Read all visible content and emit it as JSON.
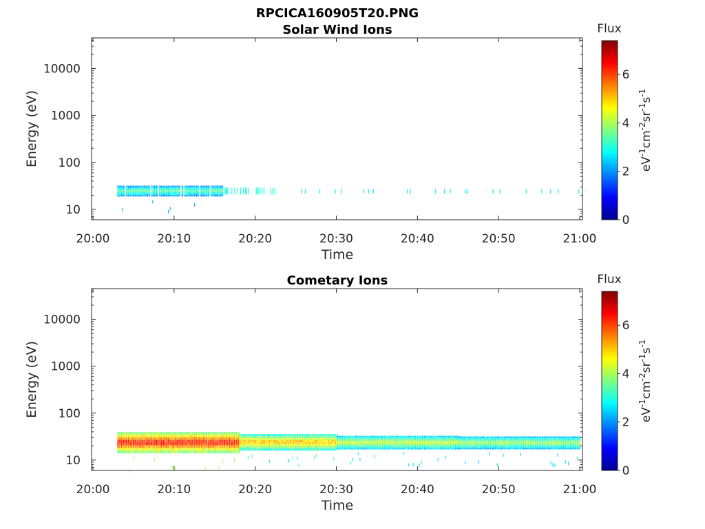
{
  "figure": {
    "title": "RPCICA160905T20.PNG"
  },
  "colors": {
    "axis": "#262626",
    "colormap": [
      "#00008f",
      "#0000ff",
      "#0080ff",
      "#00ffff",
      "#80ff80",
      "#ffff00",
      "#ff8000",
      "#ff0000",
      "#800000"
    ]
  },
  "chart_data": [
    {
      "type": "heatmap",
      "title": "Solar Wind Ions",
      "xlabel": "Time",
      "ylabel": "Energy (eV)",
      "x_ticks": [
        "20:00",
        "20:10",
        "20:20",
        "20:30",
        "20:40",
        "20:50",
        "21:00"
      ],
      "x_range": [
        "20:00",
        "21:00"
      ],
      "y_scale": "log",
      "y_ticks": [
        "10",
        "100",
        "1000",
        "10000"
      ],
      "y_range": [
        6,
        45000
      ],
      "colorbar": {
        "label": "Flux",
        "unit": "eV-1cm-2sr-1s-1",
        "ticks": [
          "0",
          "2",
          "4",
          "6"
        ],
        "range": [
          0,
          7.4
        ]
      },
      "bands": [
        {
          "t_start": "20:03",
          "t_end": "20:16",
          "e_low": 19,
          "e_high": 32,
          "flux": 3.4,
          "density": 0.9
        },
        {
          "t_start": "20:16",
          "t_end": "20:23",
          "e_low": 21,
          "e_high": 29,
          "flux": 3.0,
          "density": 0.35
        },
        {
          "t_start": "20:23",
          "t_end": "21:00",
          "e_low": 22,
          "e_high": 27,
          "flux": 2.8,
          "density": 0.06
        }
      ]
    },
    {
      "type": "heatmap",
      "title": "Cometary Ions",
      "xlabel": "Time",
      "ylabel": "Energy (eV)",
      "x_ticks": [
        "20:00",
        "20:10",
        "20:20",
        "20:30",
        "20:40",
        "20:50",
        "21:00"
      ],
      "x_range": [
        "20:00",
        "21:00"
      ],
      "y_scale": "log",
      "y_ticks": [
        "10",
        "100",
        "1000",
        "10000"
      ],
      "y_range": [
        6,
        45000
      ],
      "colorbar": {
        "label": "Flux",
        "unit": "eV-1cm-2sr-1s-1",
        "ticks": [
          "0",
          "2",
          "4",
          "6"
        ],
        "range": [
          0,
          7.4
        ]
      },
      "bands": [
        {
          "t_start": "20:03",
          "t_end": "20:18",
          "e_low": 14,
          "e_high": 40,
          "flux": 6.2,
          "density": 1.0
        },
        {
          "t_start": "20:18",
          "t_end": "20:30",
          "e_low": 16,
          "e_high": 36,
          "flux": 5.0,
          "density": 1.0
        },
        {
          "t_start": "20:30",
          "t_end": "20:45",
          "e_low": 17,
          "e_high": 33,
          "flux": 4.2,
          "density": 1.0
        },
        {
          "t_start": "20:45",
          "t_end": "21:00",
          "e_low": 17,
          "e_high": 32,
          "flux": 3.9,
          "density": 1.0
        }
      ]
    }
  ]
}
